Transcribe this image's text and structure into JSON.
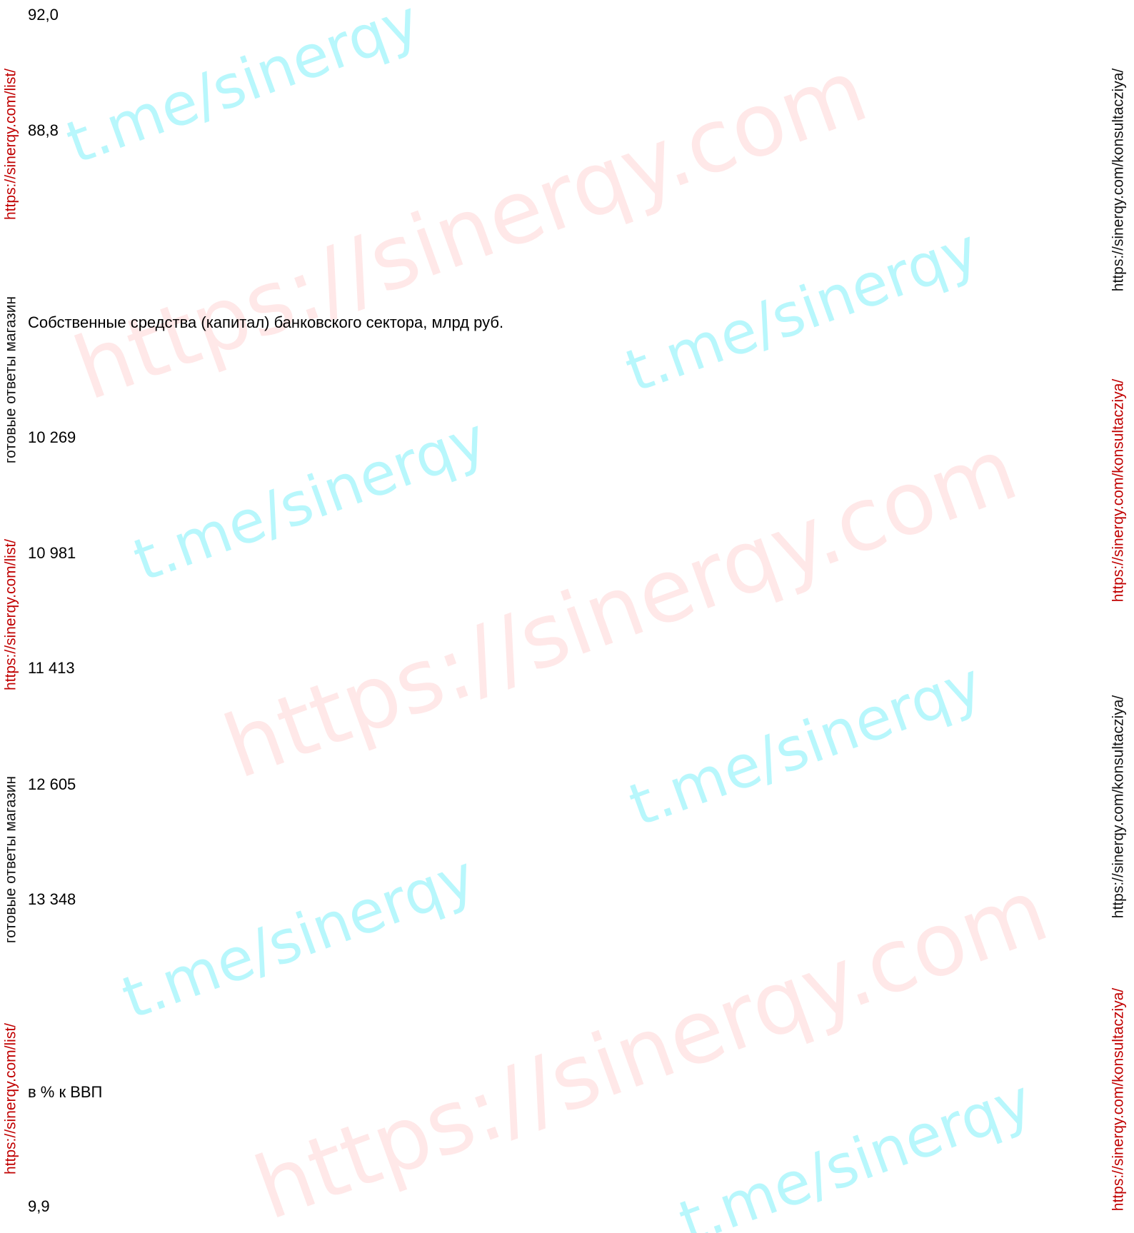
{
  "lines": [
    "92,0",
    "88,8",
    "Собственные средства (капитал) банковского сектора, млрд руб.",
    "10 269",
    "10 981",
    "11 413",
    "12 605",
    "13 348",
    "в % к ВВП",
    "9,9"
  ],
  "watermarks": {
    "left": [
      "https://sinerqy.com/list/",
      "готовые ответы магазин",
      "https://sinerqy.com/list/",
      "готовые ответы магазин",
      "https://sinerqy.com/list/"
    ],
    "right": [
      "https://sinerqy.com/konsultacziya/",
      "https://sinerqy.com/konsultacziya/",
      "https://sinerqy.com/konsultacziya/",
      "https://sinerqy.com/konsultacziya/"
    ],
    "tme": [
      "t.me/sinerqy",
      "t.me/sinerqy",
      "t.me/sinerqy",
      "t.me/sinerqy",
      "t.me/sinerqy",
      "t.me/sinerqy"
    ],
    "site": [
      "https://sinerqy.com",
      "https://sinerqy.com",
      "https://sinerqy.com"
    ]
  }
}
